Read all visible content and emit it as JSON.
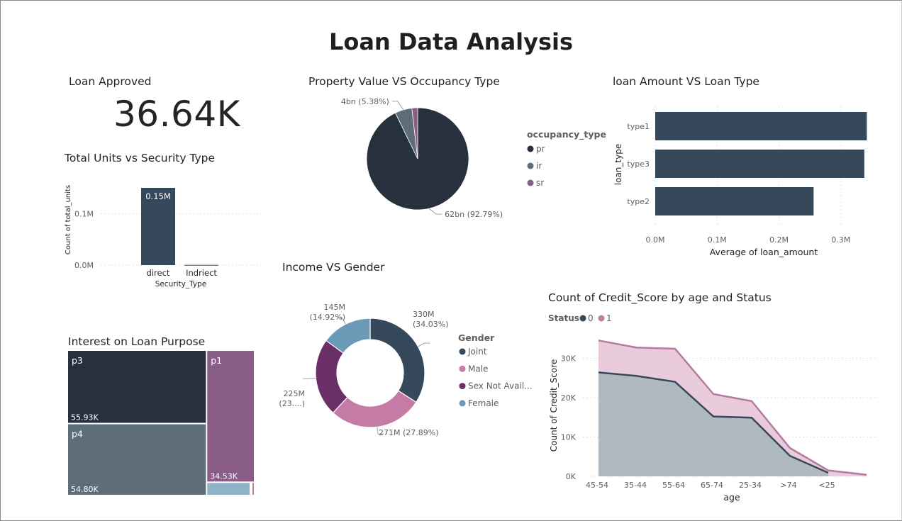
{
  "page": {
    "title": "Loan Data Analysis"
  },
  "kpi": {
    "title": "Loan Approved",
    "value": "36.64K"
  },
  "colors": {
    "navy": "#26313d",
    "slate": "#36495a",
    "gray": "#5e6e78",
    "purple": "#8a5d87",
    "pink": "#c47ba6",
    "plum": "#6b2f68",
    "steel": "#6b9ab7",
    "light_blue": "#8fb2c9",
    "area0": "#b0b9bf",
    "area1": "#e9cbdb",
    "line1": "#b57a9e"
  },
  "chart_data": [
    {
      "id": "security",
      "type": "bar",
      "title": "Total Units vs Security Type",
      "xlabel": "Security_Type",
      "ylabel": "Count of total_units",
      "categories": [
        "direct",
        "Indriect"
      ],
      "values": [
        150000,
        400
      ],
      "data_labels": [
        "0.15M",
        ""
      ],
      "ylim": [
        0,
        150000
      ],
      "yticks": [
        {
          "v": 0,
          "label": "0.0M"
        },
        {
          "v": 100000,
          "label": "0.1M"
        }
      ],
      "grid": true
    },
    {
      "id": "occupancy",
      "type": "pie",
      "title": "Property Value VS Occupancy Type",
      "legend_title": "occupancy_type",
      "slices": [
        {
          "name": "pr",
          "value": 92.79,
          "label": "62bn (92.79%)",
          "color": "#26313d"
        },
        {
          "name": "ir",
          "value": 5.38,
          "label": "4bn (5.38%)",
          "color": "#5e6e78"
        },
        {
          "name": "sr",
          "value": 1.83,
          "label": "",
          "color": "#8a5d87"
        }
      ]
    },
    {
      "id": "loantype",
      "type": "bar",
      "orientation": "horizontal",
      "title": "loan Amount VS Loan Type",
      "xlabel": "Average of loan_amount",
      "ylabel": "loan_type",
      "categories": [
        "type1",
        "type3",
        "type2"
      ],
      "values": [
        342000,
        338000,
        256000
      ],
      "xlim": [
        0,
        345000
      ],
      "xticks": [
        {
          "v": 0,
          "label": "0.0M"
        },
        {
          "v": 100000,
          "label": "0.1M"
        },
        {
          "v": 200000,
          "label": "0.2M"
        },
        {
          "v": 300000,
          "label": "0.3M"
        }
      ],
      "grid": true
    },
    {
      "id": "gender",
      "type": "pie",
      "title": "Income VS Gender",
      "legend_title": "Gender",
      "slices": [
        {
          "name": "Joint",
          "value": 34.03,
          "label1": "330M",
          "label2": "(34.03%)",
          "color": "#36495a"
        },
        {
          "name": "Male",
          "value": 27.89,
          "label1": "271M (27.89%)",
          "label2": "",
          "color": "#c47ba6"
        },
        {
          "name": "Sex Not Avail...",
          "value": 23.16,
          "label1": "225M",
          "label2": "(23....)",
          "color": "#6b2f68"
        },
        {
          "name": "Female",
          "value": 14.92,
          "label1": "145M",
          "label2": "(14.92%)",
          "color": "#6b9ab7"
        }
      ]
    },
    {
      "id": "treemap",
      "type": "treemap",
      "title": "Interest on Loan Purpose",
      "items": [
        {
          "name": "p3",
          "value": 55.93,
          "label": "55.93K",
          "color": "#26313d"
        },
        {
          "name": "p4",
          "value": 54.8,
          "label": "54.80K",
          "color": "#5e6e78"
        },
        {
          "name": "p1",
          "value": 34.53,
          "label": "34.53K",
          "color": "#8a5d87"
        },
        {
          "name": "",
          "value": 3.0,
          "label": "",
          "color": "#8fb2c9"
        },
        {
          "name": "",
          "value": 0.3,
          "label": "",
          "color": "#c47ba6"
        }
      ]
    },
    {
      "id": "credit",
      "type": "area",
      "title": "Count of Credit_Score by age and Status",
      "legend_title": "Status",
      "xlabel": "age",
      "ylabel": "Count of Credit_Score",
      "categories": [
        "45-54",
        "35-44",
        "55-64",
        "65-74",
        "25-34",
        ">74",
        "<25",
        ""
      ],
      "series": [
        {
          "name": "0",
          "values": [
            26400,
            25500,
            24000,
            15200,
            14900,
            5200,
            900,
            null
          ]
        },
        {
          "name": "1",
          "values": [
            8100,
            7200,
            8400,
            5700,
            4200,
            2000,
            600,
            400
          ]
        }
      ],
      "ylim": [
        0,
        36000
      ],
      "yticks": [
        {
          "v": 0,
          "label": "0K"
        },
        {
          "v": 10000,
          "label": "10K"
        },
        {
          "v": 20000,
          "label": "20K"
        },
        {
          "v": 30000,
          "label": "30K"
        }
      ],
      "grid": true
    }
  ]
}
